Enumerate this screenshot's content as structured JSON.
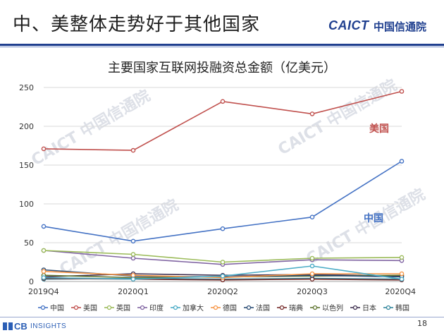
{
  "slide": {
    "title": "中、美整体走势好于其他国家",
    "logo_text": "CAICT",
    "logo_cn": "中国信通院",
    "footer_logo_cb": "CB",
    "footer_logo_insights": "INSIGHTS",
    "page_number": "18",
    "watermark_text": "CAICT 中国信通院"
  },
  "chart_data": {
    "type": "line",
    "title": "主要国家互联网投融资总金额（亿美元）",
    "xlabel": "",
    "ylabel": "",
    "categories": [
      "2019Q4",
      "2020Q1",
      "2020Q2",
      "2020Q3",
      "2020Q4"
    ],
    "ylim": [
      0,
      250
    ],
    "yticks": [
      0,
      50,
      100,
      150,
      200,
      250
    ],
    "grid": true,
    "legend_position": "bottom",
    "series": [
      {
        "name": "中国",
        "color": "#4472c4",
        "values": [
          71,
          52,
          68,
          83,
          155
        ]
      },
      {
        "name": "美国",
        "color": "#c0504d",
        "values": [
          171,
          169,
          232,
          216,
          245
        ]
      },
      {
        "name": "英国",
        "color": "#9bbb59",
        "values": [
          40,
          35,
          25,
          30,
          31
        ]
      },
      {
        "name": "印度",
        "color": "#8064a2",
        "values": [
          40,
          30,
          22,
          28,
          27
        ]
      },
      {
        "name": "加拿大",
        "color": "#4bacc6",
        "values": [
          5,
          3,
          7,
          20,
          3
        ]
      },
      {
        "name": "德国",
        "color": "#f79646",
        "values": [
          13,
          8,
          5,
          10,
          10
        ]
      },
      {
        "name": "法国",
        "color": "#2c4d75",
        "values": [
          15,
          7,
          6,
          8,
          6
        ]
      },
      {
        "name": "瑞典",
        "color": "#772c2a",
        "values": [
          4,
          3,
          2,
          3,
          2
        ]
      },
      {
        "name": "以色列",
        "color": "#5f7530",
        "values": [
          8,
          5,
          6,
          7,
          8
        ]
      },
      {
        "name": "日本",
        "color": "#403151",
        "values": [
          6,
          10,
          8,
          9,
          7
        ]
      },
      {
        "name": "韩国",
        "color": "#31859c",
        "values": [
          3,
          4,
          3,
          4,
          3
        ]
      }
    ],
    "annotations": [
      {
        "text": "美国",
        "series": "美国",
        "color": "#c0504d"
      },
      {
        "text": "中国",
        "series": "中国",
        "color": "#4472c4"
      }
    ]
  }
}
